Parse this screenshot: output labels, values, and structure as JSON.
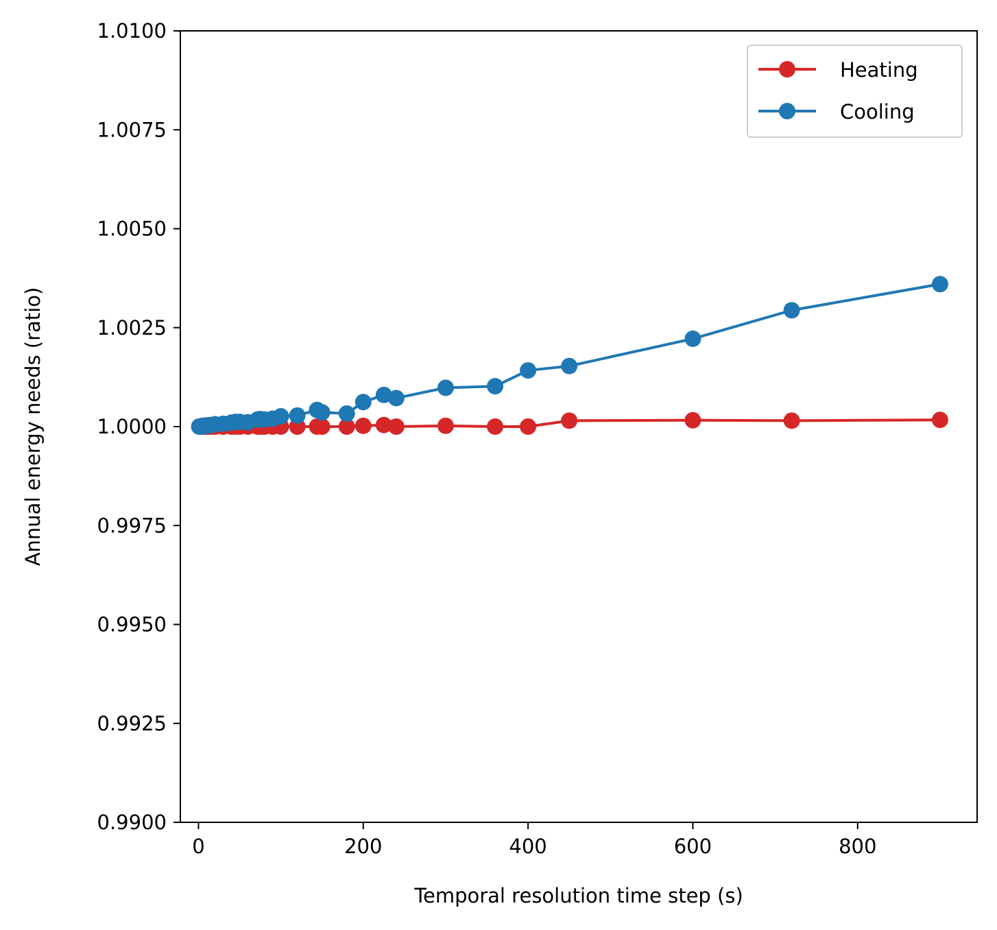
{
  "chart_data": {
    "type": "line",
    "title": "",
    "xlabel": "Temporal resolution time step (s)",
    "ylabel": "Annual energy needs (ratio)",
    "xlim": [
      -22,
      945
    ],
    "ylim": [
      0.99,
      1.01
    ],
    "xticks": [
      0,
      200,
      400,
      600,
      800
    ],
    "xtick_labels": [
      "0",
      "200",
      "400",
      "600",
      "800"
    ],
    "yticks": [
      0.99,
      0.9925,
      0.995,
      0.9975,
      1.0,
      1.0025,
      1.005,
      1.0075,
      1.01
    ],
    "ytick_labels": [
      "0.9900",
      "0.9925",
      "0.9950",
      "0.9975",
      "1.0000",
      "1.0025",
      "1.0050",
      "1.0075",
      "1.0100"
    ],
    "grid": false,
    "legend_position": "top-right",
    "series": [
      {
        "name": "Heating",
        "color": "#d62728",
        "marker": "circle",
        "x": [
          1,
          2,
          3,
          4,
          5,
          6,
          10,
          12,
          15,
          20,
          30,
          40,
          45,
          50,
          60,
          72,
          75,
          80,
          90,
          100,
          120,
          144,
          150,
          180,
          200,
          225,
          240,
          300,
          360,
          400,
          450,
          600,
          720,
          900
        ],
        "y": [
          1.0,
          1.0,
          1.0,
          1.0,
          1.0,
          1.0,
          1.0,
          1.0,
          1.0,
          1.0,
          1.0,
          1.0,
          1.0,
          1.0,
          1.0,
          1.0,
          1.0,
          1.0,
          1.0,
          1.0,
          1.0,
          1.0,
          1.0,
          1.0,
          1.00002,
          1.00004,
          1.0,
          1.00002,
          1.0,
          1.0,
          1.00015,
          1.00016,
          1.00015,
          1.00017
        ]
      },
      {
        "name": "Cooling",
        "color": "#1f77b4",
        "marker": "circle",
        "x": [
          1,
          2,
          3,
          4,
          5,
          6,
          10,
          12,
          15,
          20,
          30,
          40,
          45,
          50,
          60,
          72,
          75,
          80,
          90,
          100,
          120,
          144,
          150,
          180,
          200,
          225,
          240,
          300,
          360,
          400,
          450,
          600,
          720,
          900
        ],
        "y": [
          1.0,
          1.0,
          1.0,
          1.0,
          1.00002,
          1.00002,
          1.00003,
          1.00003,
          1.00004,
          1.00006,
          1.00007,
          1.0001,
          1.00012,
          1.00012,
          1.00011,
          1.00018,
          1.00019,
          1.00018,
          1.0002,
          1.00026,
          1.00028,
          1.00042,
          1.00036,
          1.00033,
          1.00062,
          1.0008,
          1.00072,
          1.00098,
          1.00102,
          1.00142,
          1.00153,
          1.00222,
          1.00294,
          1.0036
        ]
      }
    ]
  }
}
